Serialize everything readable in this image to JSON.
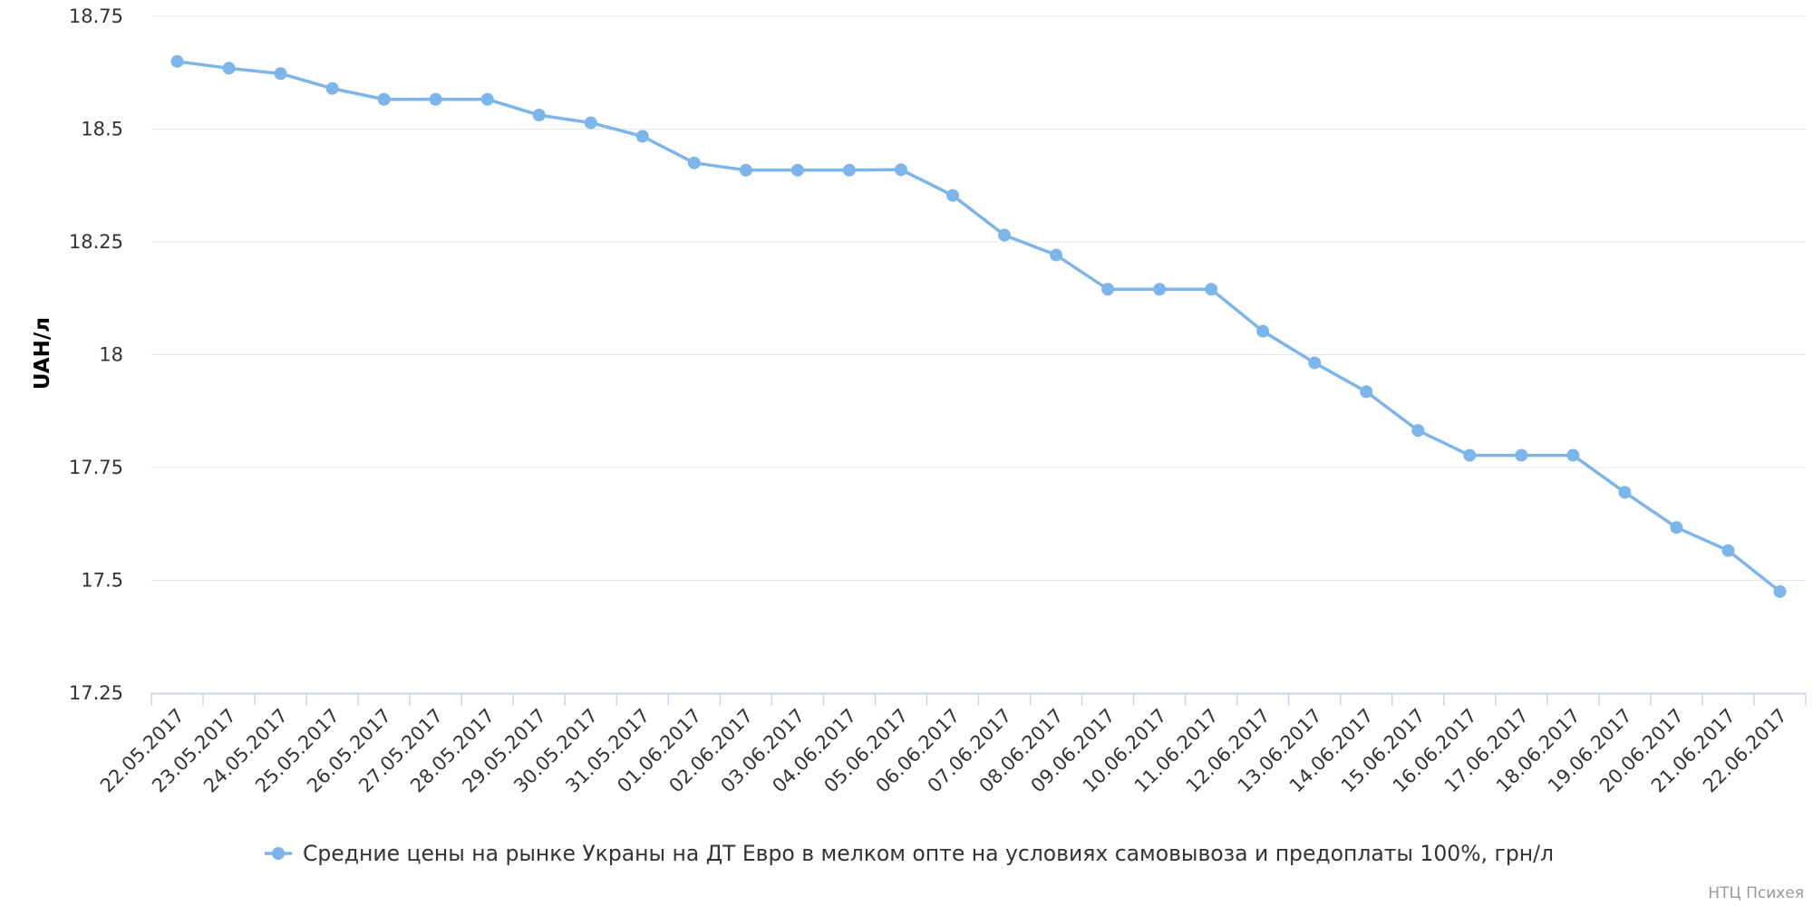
{
  "chart_data": {
    "type": "line",
    "x": [
      "22.05.2017",
      "23.05.2017",
      "24.05.2017",
      "25.05.2017",
      "26.05.2017",
      "27.05.2017",
      "28.05.2017",
      "29.05.2017",
      "30.05.2017",
      "31.05.2017",
      "01.06.2017",
      "02.06.2017",
      "03.06.2017",
      "04.06.2017",
      "05.06.2017",
      "06.06.2017",
      "07.06.2017",
      "08.06.2017",
      "09.06.2017",
      "10.06.2017",
      "11.06.2017",
      "12.06.2017",
      "13.06.2017",
      "14.06.2017",
      "15.06.2017",
      "16.06.2017",
      "17.06.2017",
      "18.06.2017",
      "19.06.2017",
      "20.06.2017",
      "21.06.2017",
      "22.06.2017"
    ],
    "series": [
      {
        "name": "Средние цены на рынке Украны на ДТ Евро в мелком опте на условиях самовывоза и предоплаты 100%, грн/л",
        "values": [
          18.65,
          18.635,
          18.623,
          18.59,
          18.566,
          18.566,
          18.566,
          18.531,
          18.514,
          18.484,
          18.425,
          18.409,
          18.409,
          18.409,
          18.41,
          18.353,
          18.265,
          18.221,
          18.145,
          18.145,
          18.145,
          18.052,
          17.982,
          17.918,
          17.832,
          17.777,
          17.777,
          17.777,
          17.695,
          17.617,
          17.566,
          17.475
        ],
        "color": "#7cb5ec"
      }
    ],
    "yticks": [
      "17.25",
      "17.5",
      "17.75",
      "18",
      "18.25",
      "18.5",
      "18.75"
    ],
    "ylim": [
      17.25,
      18.75
    ],
    "ylabel": "UAH/л",
    "xlabel": "",
    "title": "",
    "grid": true,
    "legend_position": "bottom-center",
    "colors": {
      "grid": "#e6e6e6",
      "axis": "#ccd6eb",
      "series": "#7cb5ec"
    }
  },
  "credits": "НТЦ Психея"
}
